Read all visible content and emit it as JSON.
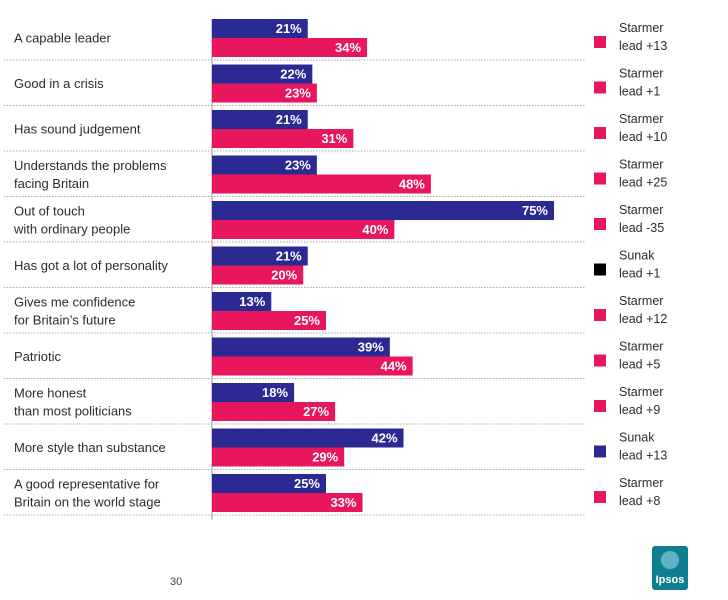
{
  "chart_data": {
    "type": "bar",
    "orientation": "horizontal",
    "categories": [
      [
        "A capable leader"
      ],
      [
        "Good in a crisis"
      ],
      [
        "Has sound judgement"
      ],
      [
        "Understands the problems",
        "facing Britain"
      ],
      [
        "Out of touch",
        "with ordinary people"
      ],
      [
        "Has got a lot of personality"
      ],
      [
        "Gives me confidence",
        "for Britain’s future"
      ],
      [
        "Patriotic"
      ],
      [
        "More honest",
        "than most politicians"
      ],
      [
        "More style than substance"
      ],
      [
        "A good representative for",
        "Britain on the world stage"
      ]
    ],
    "series": [
      {
        "color": "#2b2a93",
        "values": [
          21,
          22,
          21,
          23,
          75,
          21,
          13,
          39,
          18,
          42,
          25
        ]
      },
      {
        "color": "#e8175d",
        "values": [
          34,
          23,
          31,
          48,
          40,
          20,
          25,
          44,
          27,
          29,
          33
        ]
      }
    ],
    "value_suffix": "%",
    "xlim": [
      0,
      100
    ],
    "grid": false,
    "leads": [
      {
        "lines": [
          "Starmer",
          "lead +13"
        ],
        "color": "#e8175d"
      },
      {
        "lines": [
          "Starmer",
          "lead +1"
        ],
        "color": "#e8175d"
      },
      {
        "lines": [
          "Starmer",
          "lead +10"
        ],
        "color": "#e8175d"
      },
      {
        "lines": [
          "Starmer",
          "lead +25"
        ],
        "color": "#e8175d"
      },
      {
        "lines": [
          "Starmer",
          "lead -35"
        ],
        "color": "#e8175d"
      },
      {
        "lines": [
          "Sunak",
          "lead +1"
        ],
        "color": "#000000"
      },
      {
        "lines": [
          "Starmer",
          "lead +12"
        ],
        "color": "#e8175d"
      },
      {
        "lines": [
          "Starmer",
          "lead +5"
        ],
        "color": "#e8175d"
      },
      {
        "lines": [
          "Starmer",
          "lead +9"
        ],
        "color": "#e8175d"
      },
      {
        "lines": [
          "Sunak",
          "lead +13"
        ],
        "color": "#2b2a93"
      },
      {
        "lines": [
          "Starmer",
          "lead +8"
        ],
        "color": "#e8175d"
      }
    ]
  },
  "footer": {
    "page_number": "30",
    "logo_text": "Ipsos"
  },
  "colors": {
    "sunak_series": "#2b2a93",
    "starmer_series": "#e8175d",
    "logo": "#0f7e91"
  }
}
